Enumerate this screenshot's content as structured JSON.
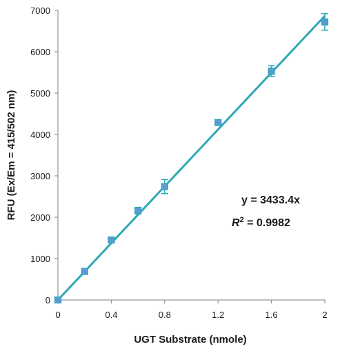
{
  "chart_data": {
    "type": "scatter",
    "xlabel": "UGT Substrate (nmole)",
    "ylabel": "RFU (Ex/Em = 415/502 nm)",
    "xlim": [
      0,
      2
    ],
    "ylim": [
      0,
      7000
    ],
    "x_ticks": [
      "0",
      "0.4",
      "0.8",
      "1.2",
      "1.6",
      "2"
    ],
    "x_tick_values": [
      0,
      0.4,
      0.8,
      1.2,
      1.6,
      2
    ],
    "y_ticks": [
      "0",
      "1000",
      "2000",
      "3000",
      "4000",
      "5000",
      "6000",
      "7000"
    ],
    "y_tick_values": [
      0,
      1000,
      2000,
      3000,
      4000,
      5000,
      6000,
      7000
    ],
    "grid": false,
    "series": [
      {
        "x": [
          0,
          0.2,
          0.4,
          0.6,
          0.8,
          1.2,
          1.6,
          2.0
        ],
        "y": [
          0,
          690,
          1450,
          2160,
          2740,
          4290,
          5530,
          6720
        ],
        "error": [
          30,
          60,
          50,
          80,
          170,
          60,
          130,
          200
        ]
      }
    ],
    "trendline": {
      "slope": 3433.4,
      "x_range": [
        0,
        2
      ]
    },
    "annotations": {
      "equation": "y = 3433.4x",
      "r2_symbol": "R",
      "r2_sup": "2",
      "r2_value": " = 0.9982"
    },
    "colors": {
      "line": "#2aa9b3",
      "marker_fill": "#5b9bd5",
      "marker_stroke": "#2aa9b3",
      "axis": "#7f7f7f"
    }
  }
}
